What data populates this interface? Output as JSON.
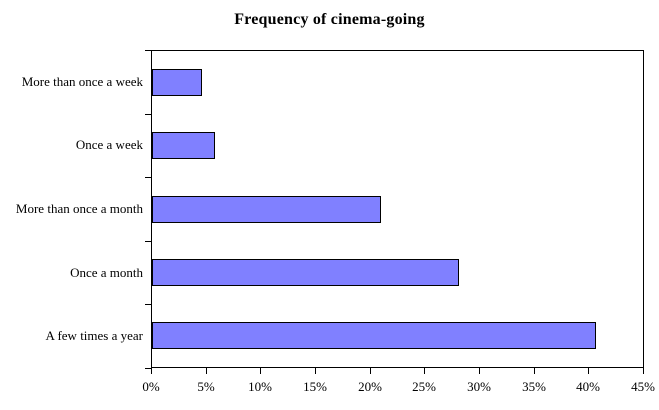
{
  "colors": {
    "bar_fill": "#8080ff",
    "bar_border": "#000000",
    "axis": "#000000",
    "background": "#ffffff",
    "text": "#000000"
  },
  "chart_data": {
    "type": "bar",
    "orientation": "horizontal",
    "title": "Frequency of cinema-going",
    "categories": [
      "More than once a week",
      "Once a week",
      "More than once a month",
      "Once a month",
      "A few times a year"
    ],
    "values": [
      4.6,
      5.8,
      21.0,
      28.1,
      40.7
    ],
    "unit": "%",
    "xlabel": "",
    "ylabel": "",
    "xlim": [
      0,
      45
    ],
    "x_tick_step": 5,
    "x_tick_labels": [
      "0%",
      "5%",
      "10%",
      "15%",
      "20%",
      "25%",
      "30%",
      "35%",
      "40%",
      "45%"
    ],
    "grid": false,
    "legend": false
  }
}
